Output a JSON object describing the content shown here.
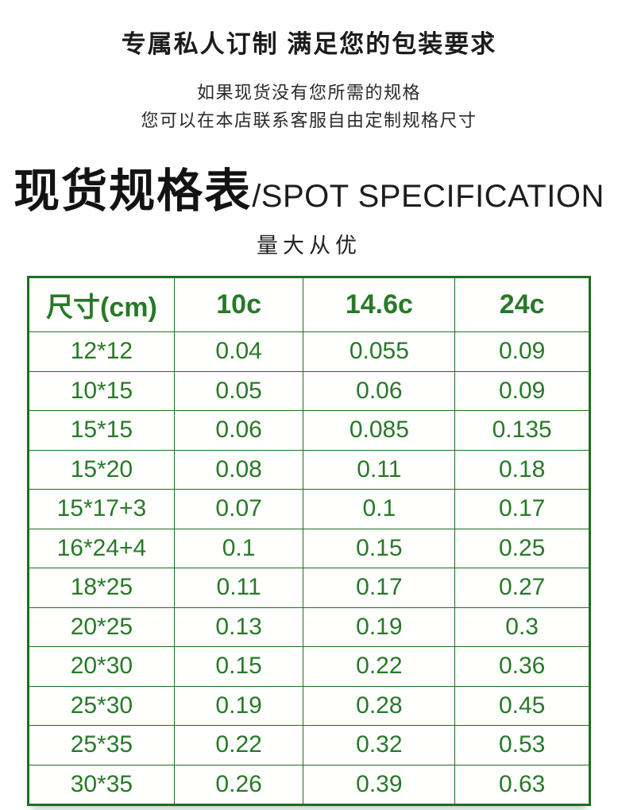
{
  "header": {
    "main_heading": "专属私人订制 满足您的包装要求",
    "subtitle_line1": "如果现货没有您所需的规格",
    "subtitle_line2": "您可以在本店联系客服自由定制规格尺寸",
    "section_title_cn": "现货规格表",
    "section_title_en": "/SPOT SPECIFICATION",
    "tagline": "量大从优"
  },
  "colors": {
    "green_text": "#287928",
    "green_border": "#1e6f1e",
    "heading_ink": "#1b1b1b"
  },
  "table": {
    "columns": [
      "尺寸(cm)",
      "10c",
      "14.6c",
      "24c"
    ],
    "column_widths_percent": [
      26,
      23,
      27,
      24
    ],
    "rows": [
      [
        "12*12",
        "0.04",
        "0.055",
        "0.09"
      ],
      [
        "10*15",
        "0.05",
        "0.06",
        "0.09"
      ],
      [
        "15*15",
        "0.06",
        "0.085",
        "0.135"
      ],
      [
        "15*20",
        "0.08",
        "0.11",
        "0.18"
      ],
      [
        "15*17+3",
        "0.07",
        "0.1",
        "0.17"
      ],
      [
        "16*24+4",
        "0.1",
        "0.15",
        "0.25"
      ],
      [
        "18*25",
        "0.11",
        "0.17",
        "0.27"
      ],
      [
        "20*25",
        "0.13",
        "0.19",
        "0.3"
      ],
      [
        "20*30",
        "0.15",
        "0.22",
        "0.36"
      ],
      [
        "25*30",
        "0.19",
        "0.28",
        "0.45"
      ],
      [
        "25*35",
        "0.22",
        "0.32",
        "0.53"
      ],
      [
        "30*35",
        "0.26",
        "0.39",
        "0.63"
      ]
    ]
  }
}
